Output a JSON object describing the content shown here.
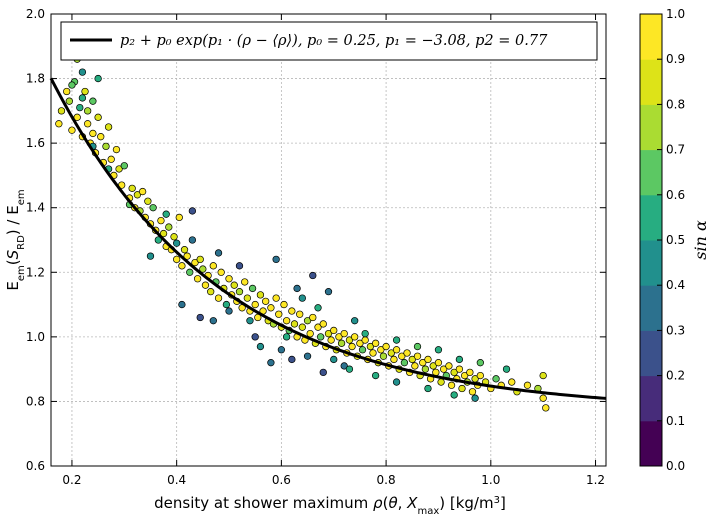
{
  "chart_data": {
    "type": "scatter",
    "title": "",
    "xlabel": "density at shower maximum ρ(θ, X_max) [kg/m³]",
    "xlabel_parts": {
      "prefix": "density at shower maximum ",
      "rho": "ρ",
      "theta": "θ",
      "xmax_main": "X",
      "xmax_sub": "max",
      "unit": "[kg/m",
      "unit_sup": "3",
      "unit_close": "]"
    },
    "ylabel": "E_em(S_RD) / E_em",
    "ylabel_parts": {
      "e1": "E",
      "sub1": "em",
      "s": "S",
      "sub_s": "RD",
      "mid": ") / E",
      "sub2": "em"
    },
    "xlim": [
      0.16,
      1.22
    ],
    "ylim": [
      0.6,
      2.0
    ],
    "xticks": [
      0.2,
      0.4,
      0.6,
      0.8,
      1.0,
      1.2
    ],
    "xtick_labels": [
      "0.2",
      "0.4",
      "0.6",
      "0.8",
      "1.0",
      "1.2"
    ],
    "yticks": [
      0.6,
      0.8,
      1.0,
      1.2,
      1.4,
      1.6,
      1.8,
      2.0
    ],
    "ytick_labels": [
      "0.6",
      "0.8",
      "1.0",
      "1.2",
      "1.4",
      "1.6",
      "1.8",
      "2.0"
    ],
    "grid": true,
    "legend": {
      "placement": "top-right",
      "label": "p₂ + p₀ exp(p₁ · (ρ − ⟨ρ⟩), p₀ = 0.25, p₁ = −3.08, p2 = 0.77"
    },
    "fit": {
      "p0": 0.25,
      "p1": -3.08,
      "p2": 0.77,
      "rho_mean": 0.62,
      "color": "#000000"
    },
    "colorbar": {
      "label": "sin α",
      "range": [
        0.0,
        1.0
      ],
      "ticks": [
        "0.0",
        "0.1",
        "0.2",
        "0.3",
        "0.4",
        "0.5",
        "0.6",
        "0.7",
        "0.8",
        "0.9",
        "1.0"
      ],
      "colors": [
        "#440154",
        "#472c7a",
        "#3b518b",
        "#2c718e",
        "#21908d",
        "#27ad81",
        "#5cc863",
        "#aadc32",
        "#dde318",
        "#fde725"
      ]
    },
    "points": {
      "columns": [
        "density",
        "ratio",
        "sin_alpha"
      ],
      "values": [
        [
          0.175,
          1.66,
          0.9
        ],
        [
          0.18,
          1.7,
          0.8
        ],
        [
          0.19,
          1.76,
          0.9
        ],
        [
          0.195,
          1.73,
          0.7
        ],
        [
          0.2,
          1.64,
          0.95
        ],
        [
          0.205,
          1.79,
          0.6
        ],
        [
          0.21,
          1.86,
          0.7
        ],
        [
          0.21,
          1.68,
          0.9
        ],
        [
          0.215,
          1.71,
          0.5
        ],
        [
          0.22,
          1.82,
          0.4
        ],
        [
          0.22,
          1.62,
          0.95
        ],
        [
          0.225,
          1.76,
          0.8
        ],
        [
          0.23,
          1.7,
          0.7
        ],
        [
          0.23,
          1.66,
          0.9
        ],
        [
          0.235,
          1.6,
          1.0
        ],
        [
          0.24,
          1.73,
          0.6
        ],
        [
          0.24,
          1.63,
          0.9
        ],
        [
          0.245,
          1.57,
          0.9
        ],
        [
          0.25,
          1.8,
          0.5
        ],
        [
          0.25,
          1.68,
          0.8
        ],
        [
          0.255,
          1.62,
          0.9
        ],
        [
          0.26,
          1.54,
          0.95
        ],
        [
          0.265,
          1.59,
          0.7
        ],
        [
          0.27,
          1.65,
          0.85
        ],
        [
          0.275,
          1.55,
          0.9
        ],
        [
          0.28,
          1.5,
          0.9
        ],
        [
          0.285,
          1.58,
          0.95
        ],
        [
          0.29,
          1.52,
          0.8
        ],
        [
          0.295,
          1.47,
          0.9
        ],
        [
          0.3,
          1.53,
          0.6
        ],
        [
          0.31,
          1.43,
          0.9
        ],
        [
          0.315,
          1.46,
          0.85
        ],
        [
          0.32,
          1.4,
          0.95
        ],
        [
          0.325,
          1.44,
          0.8
        ],
        [
          0.33,
          1.39,
          0.7
        ],
        [
          0.335,
          1.45,
          0.9
        ],
        [
          0.34,
          1.37,
          0.95
        ],
        [
          0.345,
          1.42,
          0.85
        ],
        [
          0.35,
          1.35,
          0.9
        ],
        [
          0.355,
          1.4,
          0.6
        ],
        [
          0.36,
          1.33,
          0.95
        ],
        [
          0.365,
          1.3,
          0.5
        ],
        [
          0.37,
          1.36,
          0.9
        ],
        [
          0.375,
          1.32,
          0.8
        ],
        [
          0.38,
          1.28,
          0.95
        ],
        [
          0.385,
          1.34,
          0.7
        ],
        [
          0.39,
          1.27,
          0.9
        ],
        [
          0.395,
          1.31,
          0.85
        ],
        [
          0.4,
          1.29,
          0.4
        ],
        [
          0.4,
          1.24,
          0.9
        ],
        [
          0.405,
          1.37,
          0.9
        ],
        [
          0.41,
          1.22,
          0.95
        ],
        [
          0.415,
          1.27,
          0.8
        ],
        [
          0.42,
          1.25,
          0.9
        ],
        [
          0.425,
          1.2,
          0.6
        ],
        [
          0.43,
          1.3,
          0.3
        ],
        [
          0.435,
          1.23,
          0.95
        ],
        [
          0.44,
          1.18,
          0.9
        ],
        [
          0.445,
          1.24,
          0.85
        ],
        [
          0.45,
          1.21,
          0.7
        ],
        [
          0.455,
          1.16,
          0.9
        ],
        [
          0.46,
          1.19,
          0.95
        ],
        [
          0.465,
          1.14,
          0.8
        ],
        [
          0.47,
          1.22,
          0.9
        ],
        [
          0.475,
          1.17,
          0.6
        ],
        [
          0.48,
          1.12,
          0.9
        ],
        [
          0.485,
          1.2,
          0.95
        ],
        [
          0.49,
          1.15,
          0.85
        ],
        [
          0.495,
          1.1,
          0.5
        ],
        [
          0.5,
          1.18,
          0.9
        ],
        [
          0.505,
          1.13,
          0.95
        ],
        [
          0.51,
          1.16,
          0.8
        ],
        [
          0.515,
          1.11,
          0.9
        ],
        [
          0.52,
          1.14,
          0.7
        ],
        [
          0.525,
          1.09,
          0.95
        ],
        [
          0.53,
          1.17,
          0.9
        ],
        [
          0.535,
          1.12,
          0.85
        ],
        [
          0.54,
          1.08,
          0.9
        ],
        [
          0.545,
          1.15,
          0.6
        ],
        [
          0.55,
          1.1,
          0.95
        ],
        [
          0.555,
          1.06,
          0.9
        ],
        [
          0.56,
          1.13,
          0.8
        ],
        [
          0.565,
          1.08,
          0.9
        ],
        [
          0.57,
          1.11,
          0.95
        ],
        [
          0.575,
          1.05,
          0.85
        ],
        [
          0.58,
          1.09,
          0.9
        ],
        [
          0.585,
          1.04,
          0.7
        ],
        [
          0.59,
          1.12,
          0.9
        ],
        [
          0.595,
          1.07,
          0.95
        ],
        [
          0.6,
          1.03,
          0.8
        ],
        [
          0.605,
          1.1,
          0.9
        ],
        [
          0.61,
          1.05,
          0.95
        ],
        [
          0.615,
          1.02,
          0.6
        ],
        [
          0.62,
          1.08,
          0.9
        ],
        [
          0.625,
          1.04,
          0.85
        ],
        [
          0.63,
          1.0,
          0.9
        ],
        [
          0.635,
          1.07,
          0.95
        ],
        [
          0.64,
          1.03,
          0.8
        ],
        [
          0.645,
          0.99,
          0.9
        ],
        [
          0.65,
          1.05,
          0.7
        ],
        [
          0.655,
          1.01,
          0.95
        ],
        [
          0.66,
          1.06,
          0.9
        ],
        [
          0.665,
          0.98,
          0.85
        ],
        [
          0.67,
          1.03,
          0.9
        ],
        [
          0.675,
          1.0,
          0.6
        ],
        [
          0.68,
          1.04,
          0.95
        ],
        [
          0.685,
          0.97,
          0.9
        ],
        [
          0.69,
          1.01,
          0.8
        ],
        [
          0.695,
          0.99,
          0.9
        ],
        [
          0.7,
          1.02,
          0.95
        ],
        [
          0.705,
          0.96,
          0.85
        ],
        [
          0.71,
          1.0,
          0.9
        ],
        [
          0.715,
          0.98,
          0.7
        ],
        [
          0.72,
          1.01,
          0.9
        ],
        [
          0.725,
          0.95,
          0.95
        ],
        [
          0.73,
          0.99,
          0.8
        ],
        [
          0.735,
          0.97,
          0.9
        ],
        [
          0.74,
          1.0,
          0.95
        ],
        [
          0.745,
          0.94,
          0.85
        ],
        [
          0.75,
          0.98,
          0.9
        ],
        [
          0.755,
          0.96,
          0.6
        ],
        [
          0.76,
          0.99,
          0.9
        ],
        [
          0.765,
          0.93,
          0.95
        ],
        [
          0.77,
          0.97,
          0.8
        ],
        [
          0.775,
          0.95,
          0.9
        ],
        [
          0.78,
          0.98,
          0.95
        ],
        [
          0.785,
          0.92,
          0.85
        ],
        [
          0.79,
          0.96,
          0.9
        ],
        [
          0.795,
          0.94,
          0.7
        ],
        [
          0.8,
          0.97,
          0.9
        ],
        [
          0.805,
          0.91,
          0.95
        ],
        [
          0.81,
          0.95,
          0.8
        ],
        [
          0.815,
          0.93,
          0.9
        ],
        [
          0.82,
          0.96,
          0.95
        ],
        [
          0.825,
          0.9,
          0.85
        ],
        [
          0.83,
          0.94,
          0.9
        ],
        [
          0.835,
          0.92,
          0.6
        ],
        [
          0.84,
          0.95,
          0.9
        ],
        [
          0.845,
          0.89,
          0.95
        ],
        [
          0.85,
          0.93,
          0.8
        ],
        [
          0.855,
          0.91,
          0.9
        ],
        [
          0.86,
          0.94,
          0.95
        ],
        [
          0.865,
          0.88,
          0.85
        ],
        [
          0.87,
          0.92,
          0.9
        ],
        [
          0.875,
          0.9,
          0.7
        ],
        [
          0.88,
          0.93,
          0.9
        ],
        [
          0.885,
          0.87,
          0.95
        ],
        [
          0.89,
          0.91,
          0.8
        ],
        [
          0.895,
          0.89,
          0.9
        ],
        [
          0.9,
          0.92,
          0.95
        ],
        [
          0.905,
          0.86,
          0.85
        ],
        [
          0.91,
          0.9,
          0.9
        ],
        [
          0.915,
          0.88,
          0.6
        ],
        [
          0.92,
          0.91,
          0.9
        ],
        [
          0.925,
          0.85,
          0.95
        ],
        [
          0.93,
          0.89,
          0.8
        ],
        [
          0.935,
          0.87,
          0.9
        ],
        [
          0.94,
          0.9,
          0.95
        ],
        [
          0.945,
          0.84,
          0.85
        ],
        [
          0.95,
          0.88,
          0.9
        ],
        [
          0.955,
          0.86,
          0.7
        ],
        [
          0.96,
          0.89,
          0.9
        ],
        [
          0.965,
          0.83,
          0.95
        ],
        [
          0.97,
          0.87,
          0.8
        ],
        [
          0.975,
          0.85,
          0.9
        ],
        [
          0.98,
          0.88,
          0.95
        ],
        [
          0.99,
          0.86,
          0.85
        ],
        [
          1.0,
          0.84,
          0.9
        ],
        [
          1.01,
          0.87,
          0.6
        ],
        [
          1.02,
          0.85,
          0.9
        ],
        [
          1.04,
          0.86,
          0.95
        ],
        [
          1.05,
          0.83,
          0.8
        ],
        [
          1.07,
          0.85,
          0.9
        ],
        [
          1.09,
          0.84,
          0.7
        ],
        [
          1.1,
          0.81,
          0.9
        ],
        [
          1.105,
          0.78,
          0.95
        ],
        [
          1.1,
          0.88,
          0.8
        ],
        [
          0.43,
          1.39,
          0.25
        ],
        [
          0.48,
          1.26,
          0.35
        ],
        [
          0.52,
          1.22,
          0.2
        ],
        [
          0.47,
          1.05,
          0.3
        ],
        [
          0.55,
          1.0,
          0.25
        ],
        [
          0.56,
          0.97,
          0.4
        ],
        [
          0.6,
          0.96,
          0.3
        ],
        [
          0.58,
          0.92,
          0.35
        ],
        [
          0.62,
          0.93,
          0.2
        ],
        [
          0.65,
          0.94,
          0.3
        ],
        [
          0.68,
          0.89,
          0.25
        ],
        [
          0.66,
          1.19,
          0.2
        ],
        [
          0.63,
          1.15,
          0.3
        ],
        [
          0.59,
          1.24,
          0.35
        ],
        [
          0.7,
          0.93,
          0.4
        ],
        [
          0.72,
          0.91,
          0.3
        ],
        [
          0.74,
          1.05,
          0.45
        ],
        [
          0.61,
          1.0,
          0.5
        ],
        [
          0.54,
          1.05,
          0.45
        ],
        [
          0.5,
          1.08,
          0.35
        ],
        [
          0.445,
          1.06,
          0.25
        ],
        [
          0.41,
          1.1,
          0.3
        ],
        [
          0.64,
          1.12,
          0.4
        ],
        [
          0.67,
          1.09,
          0.5
        ],
        [
          0.69,
          1.14,
          0.35
        ],
        [
          0.76,
          1.01,
          0.5
        ],
        [
          0.82,
          0.99,
          0.55
        ],
        [
          0.86,
          0.97,
          0.6
        ],
        [
          0.9,
          0.96,
          0.5
        ],
        [
          0.94,
          0.93,
          0.55
        ],
        [
          0.98,
          0.92,
          0.6
        ],
        [
          1.03,
          0.9,
          0.55
        ],
        [
          0.97,
          0.81,
          0.45
        ],
        [
          0.93,
          0.82,
          0.5
        ],
        [
          0.88,
          0.84,
          0.55
        ],
        [
          0.82,
          0.86,
          0.45
        ],
        [
          0.78,
          0.88,
          0.5
        ],
        [
          0.73,
          0.9,
          0.55
        ],
        [
          0.38,
          1.38,
          0.5
        ],
        [
          0.35,
          1.25,
          0.4
        ],
        [
          0.31,
          1.41,
          0.6
        ],
        [
          0.27,
          1.52,
          0.55
        ],
        [
          0.24,
          1.59,
          0.45
        ],
        [
          0.2,
          1.78,
          0.65
        ],
        [
          0.22,
          1.74,
          0.55
        ]
      ]
    }
  }
}
